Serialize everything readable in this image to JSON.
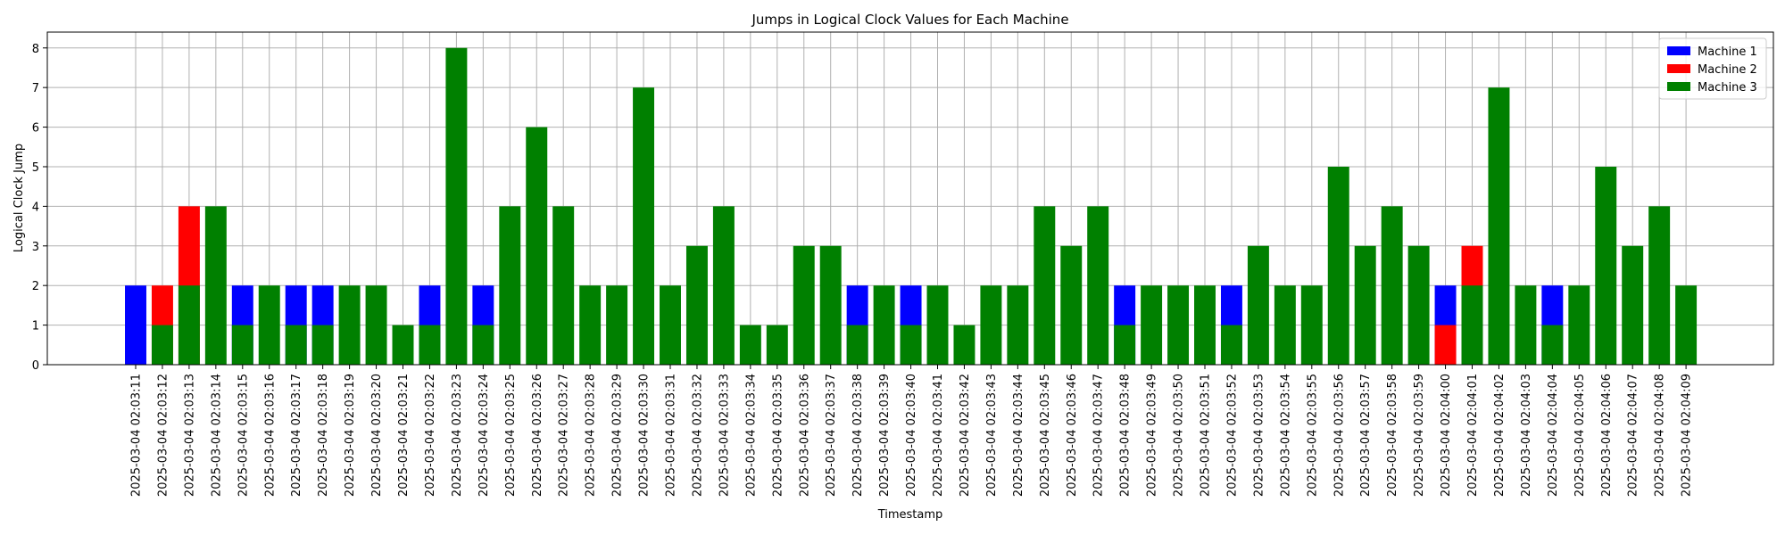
{
  "chart_data": {
    "type": "bar",
    "stacking": "overlay",
    "title": "Jumps in Logical Clock Values for Each Machine",
    "xlabel": "Timestamp",
    "ylabel": "Logical Clock Jump",
    "ylim": [
      0,
      8.4
    ],
    "yticks": [
      0,
      1,
      2,
      3,
      4,
      5,
      6,
      7,
      8
    ],
    "grid": true,
    "legend_position": "top-right",
    "categories": [
      "2025-03-04 02:03:11",
      "2025-03-04 02:03:12",
      "2025-03-04 02:03:13",
      "2025-03-04 02:03:14",
      "2025-03-04 02:03:15",
      "2025-03-04 02:03:16",
      "2025-03-04 02:03:17",
      "2025-03-04 02:03:18",
      "2025-03-04 02:03:19",
      "2025-03-04 02:03:20",
      "2025-03-04 02:03:21",
      "2025-03-04 02:03:22",
      "2025-03-04 02:03:23",
      "2025-03-04 02:03:24",
      "2025-03-04 02:03:25",
      "2025-03-04 02:03:26",
      "2025-03-04 02:03:27",
      "2025-03-04 02:03:28",
      "2025-03-04 02:03:29",
      "2025-03-04 02:03:30",
      "2025-03-04 02:03:31",
      "2025-03-04 02:03:32",
      "2025-03-04 02:03:33",
      "2025-03-04 02:03:34",
      "2025-03-04 02:03:35",
      "2025-03-04 02:03:36",
      "2025-03-04 02:03:37",
      "2025-03-04 02:03:38",
      "2025-03-04 02:03:39",
      "2025-03-04 02:03:40",
      "2025-03-04 02:03:41",
      "2025-03-04 02:03:42",
      "2025-03-04 02:03:43",
      "2025-03-04 02:03:44",
      "2025-03-04 02:03:45",
      "2025-03-04 02:03:46",
      "2025-03-04 02:03:47",
      "2025-03-04 02:03:48",
      "2025-03-04 02:03:49",
      "2025-03-04 02:03:50",
      "2025-03-04 02:03:51",
      "2025-03-04 02:03:52",
      "2025-03-04 02:03:53",
      "2025-03-04 02:03:54",
      "2025-03-04 02:03:55",
      "2025-03-04 02:03:56",
      "2025-03-04 02:03:57",
      "2025-03-04 02:03:58",
      "2025-03-04 02:03:59",
      "2025-03-04 02:04:00",
      "2025-03-04 02:04:01",
      "2025-03-04 02:04:02",
      "2025-03-04 02:04:03",
      "2025-03-04 02:04:04",
      "2025-03-04 02:04:05",
      "2025-03-04 02:04:06",
      "2025-03-04 02:04:07",
      "2025-03-04 02:04:08",
      "2025-03-04 02:04:09"
    ],
    "series": [
      {
        "name": "Machine 1",
        "color": "#0000ff",
        "values": [
          2,
          null,
          null,
          null,
          2,
          null,
          2,
          2,
          null,
          null,
          null,
          2,
          null,
          2,
          null,
          null,
          null,
          null,
          null,
          null,
          null,
          null,
          null,
          null,
          null,
          null,
          null,
          2,
          null,
          2,
          null,
          null,
          null,
          null,
          null,
          null,
          null,
          2,
          null,
          null,
          null,
          2,
          null,
          null,
          null,
          null,
          null,
          null,
          null,
          2,
          null,
          null,
          null,
          2,
          null,
          null,
          null,
          null,
          null
        ]
      },
      {
        "name": "Machine 2",
        "color": "#ff0000",
        "values": [
          null,
          2,
          4,
          null,
          null,
          null,
          null,
          null,
          null,
          null,
          null,
          null,
          null,
          null,
          null,
          null,
          null,
          null,
          null,
          null,
          null,
          null,
          null,
          null,
          null,
          null,
          null,
          null,
          null,
          null,
          null,
          null,
          null,
          null,
          null,
          null,
          null,
          null,
          null,
          null,
          null,
          null,
          null,
          null,
          null,
          null,
          null,
          null,
          null,
          1,
          3,
          null,
          null,
          null,
          null,
          null,
          null,
          null,
          null
        ]
      },
      {
        "name": "Machine 3",
        "color": "#008000",
        "values": [
          null,
          1,
          2,
          4,
          1,
          2,
          1,
          1,
          2,
          2,
          1,
          1,
          8,
          1,
          4,
          6,
          4,
          2,
          2,
          7,
          2,
          3,
          4,
          1,
          1,
          3,
          3,
          1,
          2,
          1,
          2,
          1,
          2,
          2,
          4,
          3,
          4,
          1,
          2,
          2,
          2,
          1,
          3,
          2,
          2,
          5,
          3,
          4,
          3,
          null,
          2,
          7,
          2,
          1,
          2,
          5,
          3,
          4,
          2
        ]
      }
    ]
  }
}
